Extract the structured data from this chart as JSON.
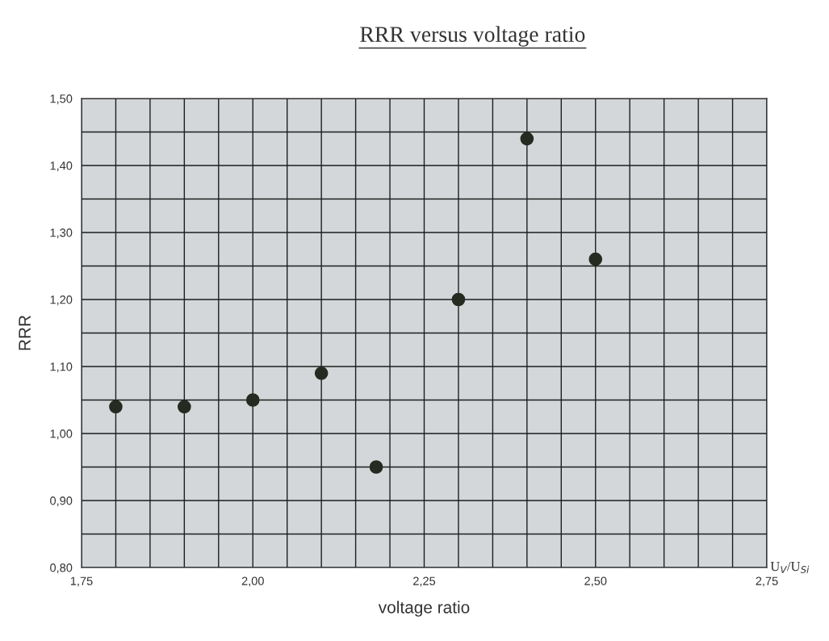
{
  "chart_data": {
    "type": "scatter",
    "title": "RRR versus voltage ratio",
    "xlabel": "voltage ratio",
    "ylabel": "RRR",
    "annotations": [
      "U$_{V}$/U$_{Si}$"
    ],
    "x": [
      1.8,
      1.9,
      2.0,
      2.1,
      2.18,
      2.3,
      2.4,
      2.5
    ],
    "series": [
      {
        "color": "#262b22",
        "values": [
          1.04,
          1.04,
          1.05,
          1.09,
          0.95,
          1.2,
          1.44,
          1.26
        ]
      }
    ],
    "marker": "circle",
    "grid": true,
    "xlim": [
      1.75,
      2.75
    ],
    "ylim": [
      0.8,
      1.5
    ],
    "xticks": [
      {
        "value": 1.75,
        "label": "1,75"
      },
      {
        "value": 1.8,
        "label": null
      },
      {
        "value": 1.85,
        "label": null
      },
      {
        "value": 1.9,
        "label": null
      },
      {
        "value": 1.95,
        "label": null
      },
      {
        "value": 2.0,
        "label": "2,00"
      },
      {
        "value": 2.05,
        "label": null
      },
      {
        "value": 2.1,
        "label": null
      },
      {
        "value": 2.15,
        "label": null
      },
      {
        "value": 2.2,
        "label": null
      },
      {
        "value": 2.25,
        "label": "2,25"
      },
      {
        "value": 2.3,
        "label": null
      },
      {
        "value": 2.35,
        "label": null
      },
      {
        "value": 2.4,
        "label": null
      },
      {
        "value": 2.45,
        "label": null
      },
      {
        "value": 2.5,
        "label": "2,50"
      },
      {
        "value": 2.55,
        "label": null
      },
      {
        "value": 2.6,
        "label": null
      },
      {
        "value": 2.65,
        "label": null
      },
      {
        "value": 2.7,
        "label": null
      },
      {
        "value": 2.75,
        "label": "2,75"
      }
    ],
    "yticks": [
      {
        "value": 0.8,
        "label": "0,80"
      },
      {
        "value": 0.85,
        "label": null
      },
      {
        "value": 0.9,
        "label": "0,90"
      },
      {
        "value": 0.95,
        "label": null
      },
      {
        "value": 1.0,
        "label": "1,00"
      },
      {
        "value": 1.05,
        "label": null
      },
      {
        "value": 1.1,
        "label": "1,10"
      },
      {
        "value": 1.15,
        "label": null
      },
      {
        "value": 1.2,
        "label": "1,20"
      },
      {
        "value": 1.25,
        "label": null
      },
      {
        "value": 1.3,
        "label": "1,30"
      },
      {
        "value": 1.35,
        "label": null
      },
      {
        "value": 1.4,
        "label": "1,40"
      },
      {
        "value": 1.45,
        "label": null
      },
      {
        "value": 1.5,
        "label": "1,50"
      }
    ]
  }
}
